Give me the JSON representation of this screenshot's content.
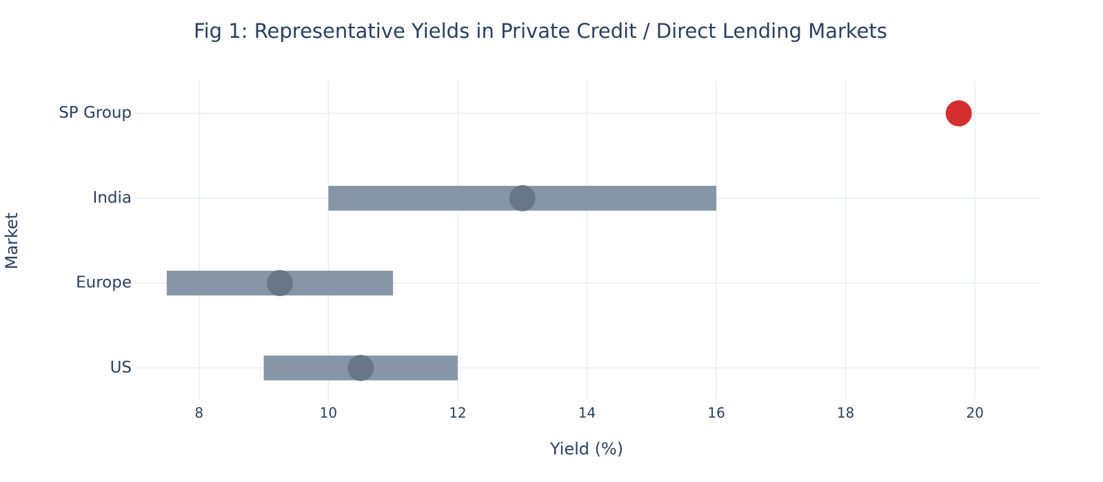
{
  "chart_data": {
    "type": "range",
    "title": "Fig 1: Representative Yields in Private Credit / Direct Lending Markets",
    "x_label": "Yield (%)",
    "y_label": "Market",
    "categories": [
      "US",
      "Europe",
      "India",
      "SP Group"
    ],
    "low": [
      9,
      7.5,
      10,
      null
    ],
    "high": [
      12,
      11,
      16,
      null
    ],
    "mid": [
      10.5,
      9.25,
      13,
      19.75
    ],
    "range_color": "#8696a8",
    "point_colors": [
      "#667788",
      "#667788",
      "#667788",
      "#d32f2f"
    ],
    "xlim": [
      7,
      21
    ],
    "xticks": [
      8,
      10,
      12,
      14,
      16,
      18,
      20
    ],
    "grid": true
  }
}
